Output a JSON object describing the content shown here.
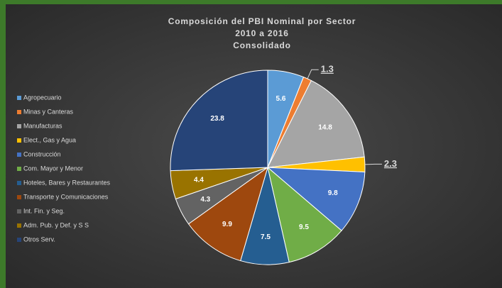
{
  "chart_data": {
    "type": "pie",
    "title": [
      "Composición del PBI Nominal por Sector",
      "2010 a 2016",
      "Consolidado"
    ],
    "categories": [
      "Agropecuario",
      "Minas y Canteras",
      "Manufacturas",
      "Elect., Gas y Agua",
      "Construcción",
      "Com. Mayor y Menor",
      "Hoteles, Bares y Restaurantes",
      "Transporte y Comunicaciones",
      "Int. Fin. y Seg.",
      "Adm. Pub. y Def. y S S",
      "Otros Serv."
    ],
    "values": [
      5.6,
      1.3,
      14.8,
      2.3,
      9.8,
      9.5,
      7.5,
      9.9,
      4.3,
      4.4,
      23.8
    ],
    "colors": [
      "#5b9bd5",
      "#ed7d31",
      "#a5a5a5",
      "#ffc000",
      "#4472c4",
      "#70ad47",
      "#255e91",
      "#9e480e",
      "#636363",
      "#997300",
      "#264478"
    ],
    "legend": "left"
  }
}
